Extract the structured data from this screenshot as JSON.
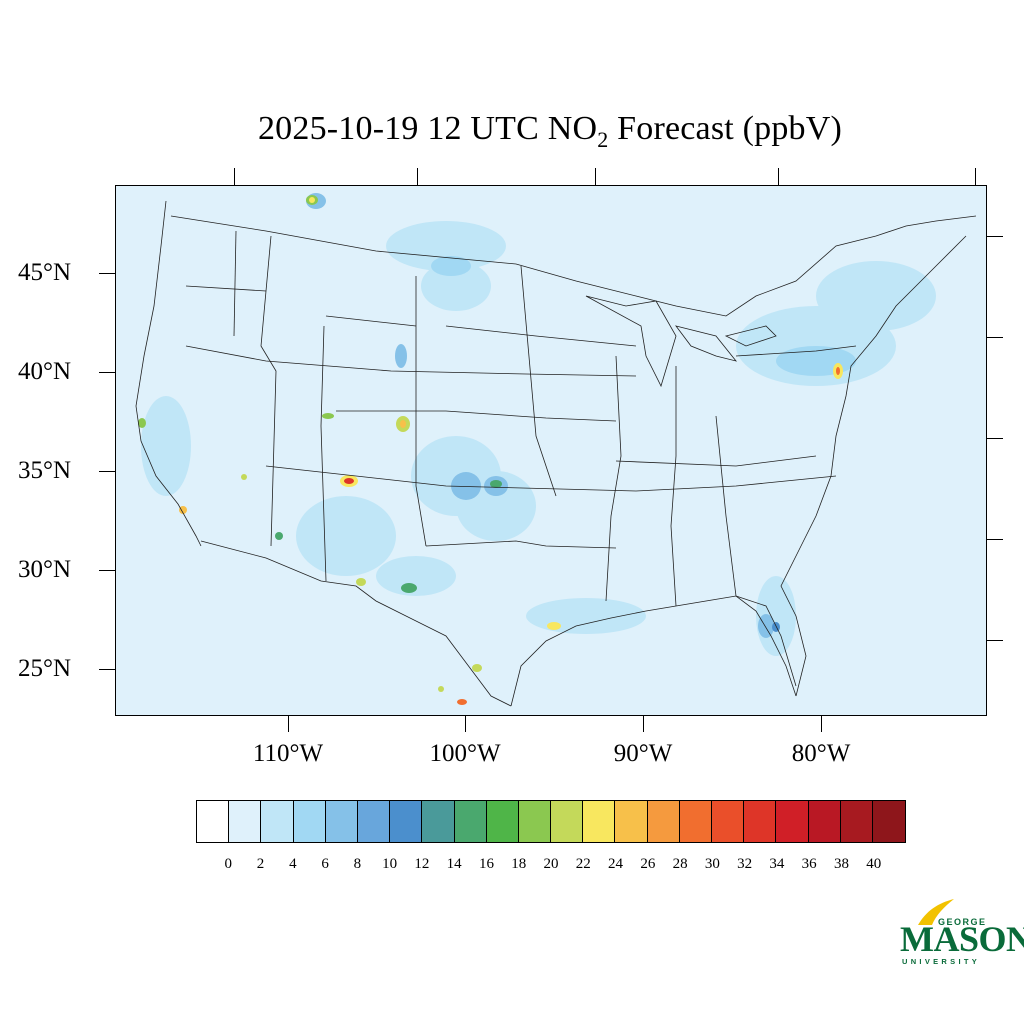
{
  "title": {
    "prefix": "2025-10-19 12 UTC NO",
    "subscript": "2",
    "suffix": " Forecast (ppbV)"
  },
  "map": {
    "lat_labels": [
      "45°N",
      "40°N",
      "35°N",
      "30°N",
      "25°N"
    ],
    "lon_labels": [
      "110°W",
      "100°W",
      "90°W",
      "80°W"
    ],
    "background_color": "#dff1fb"
  },
  "colorbar": {
    "colors": [
      "#ffffff",
      "#dff1fb",
      "#c0e6f7",
      "#a1d8f3",
      "#85c1e8",
      "#68a6dc",
      "#4b8fcd",
      "#4a9a9a",
      "#4aa86e",
      "#4fb548",
      "#8bc850",
      "#c4d95a",
      "#f8e75f",
      "#f7c04a",
      "#f59a3e",
      "#f16e2f",
      "#ea4f2a",
      "#de3528",
      "#d01f27",
      "#b91824",
      "#a71a20",
      "#8e161b"
    ],
    "labels": [
      "0",
      "2",
      "4",
      "6",
      "8",
      "10",
      "12",
      "14",
      "16",
      "18",
      "20",
      "22",
      "24",
      "26",
      "28",
      "30",
      "32",
      "34",
      "36",
      "38",
      "40"
    ]
  },
  "logo": {
    "top": "GEORGE",
    "main": "MASON",
    "bottom": "UNIVERSITY",
    "color": "#0a6b3a",
    "accent_color": "#f2c200"
  }
}
